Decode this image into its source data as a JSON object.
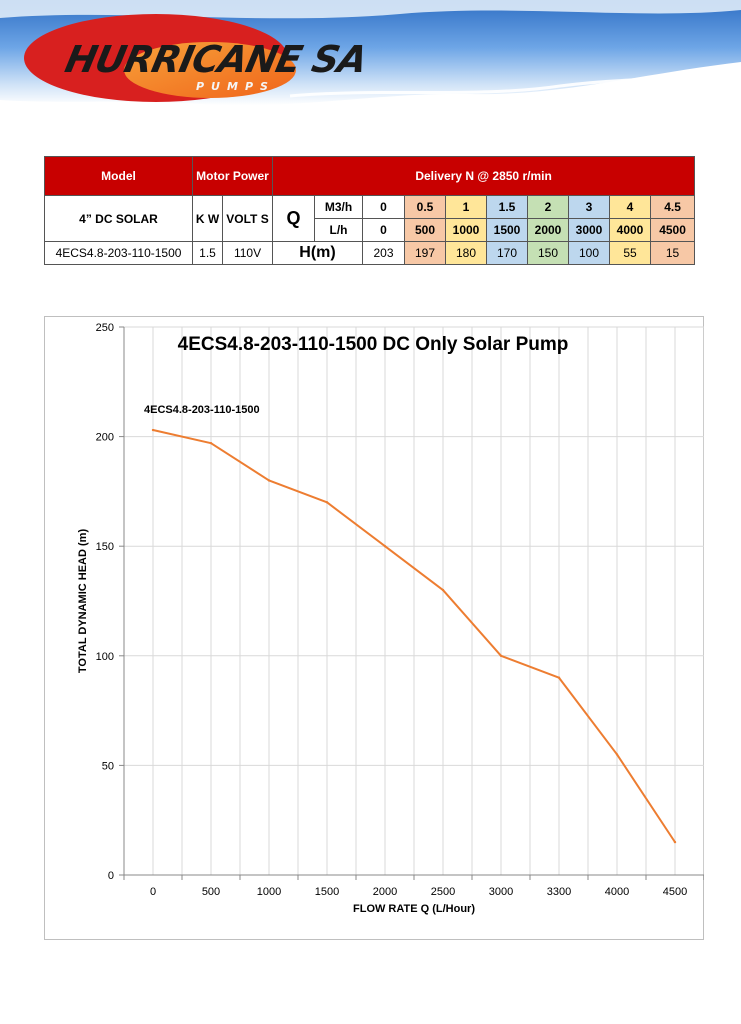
{
  "header": {
    "logo_name": "HURRICANE SA",
    "logo_sub": "PUMPS",
    "colors": {
      "logo_red": "#d8201f",
      "logo_orange": "#f26a1b",
      "sky_blue": "#3d7fd0"
    }
  },
  "spec_table": {
    "head": {
      "model": "Model",
      "motor_power": "Motor Power",
      "delivery": "Delivery N @ 2850 r/min"
    },
    "sub": {
      "model": "4” DC SOLAR",
      "kw": "K W",
      "volts": "VOLT S",
      "q": "Q",
      "m3h": "M3/h",
      "lh": "L/h",
      "m3h_values": [
        "0",
        "0.5",
        "1",
        "1.5",
        "2",
        "3",
        "4",
        "4.5"
      ],
      "lh_values": [
        "0",
        "500",
        "1000",
        "1500",
        "2000",
        "3000",
        "4000",
        "4500"
      ]
    },
    "row": {
      "model": "4ECS4.8-203-110-1500",
      "kw": "1.5",
      "volts": "110V",
      "hm": "H(m)",
      "head_values": [
        "203",
        "197",
        "180",
        "170",
        "150",
        "100",
        "55",
        "15"
      ]
    },
    "colors": {
      "header_red": "#c80000",
      "orange": "#f7c8a6",
      "yellow": "#ffe699",
      "blue": "#bdd7ee",
      "green": "#c5e0b4"
    }
  },
  "chart_data": {
    "type": "line",
    "title": "4ECS4.8-203-110-1500 DC Only Solar Pump",
    "xlabel": "FLOW RATE Q (L/Hour)",
    "ylabel": "TOTAL DYNAMIC HEAD (m)",
    "categories": [
      "0",
      "500",
      "1000",
      "1500",
      "2000",
      "2500",
      "3000",
      "3300",
      "4000",
      "4500"
    ],
    "series": [
      {
        "name": "4ECS4.8-203-110-1500",
        "values": [
          203,
          197,
          180,
          170,
          150,
          130,
          100,
          90,
          55,
          15
        ],
        "color": "#ed7d31"
      }
    ],
    "ylim": [
      0,
      250
    ],
    "yticks": [
      "0",
      "50",
      "100",
      "150",
      "200",
      "250"
    ],
    "grid": true,
    "legend": "none"
  }
}
